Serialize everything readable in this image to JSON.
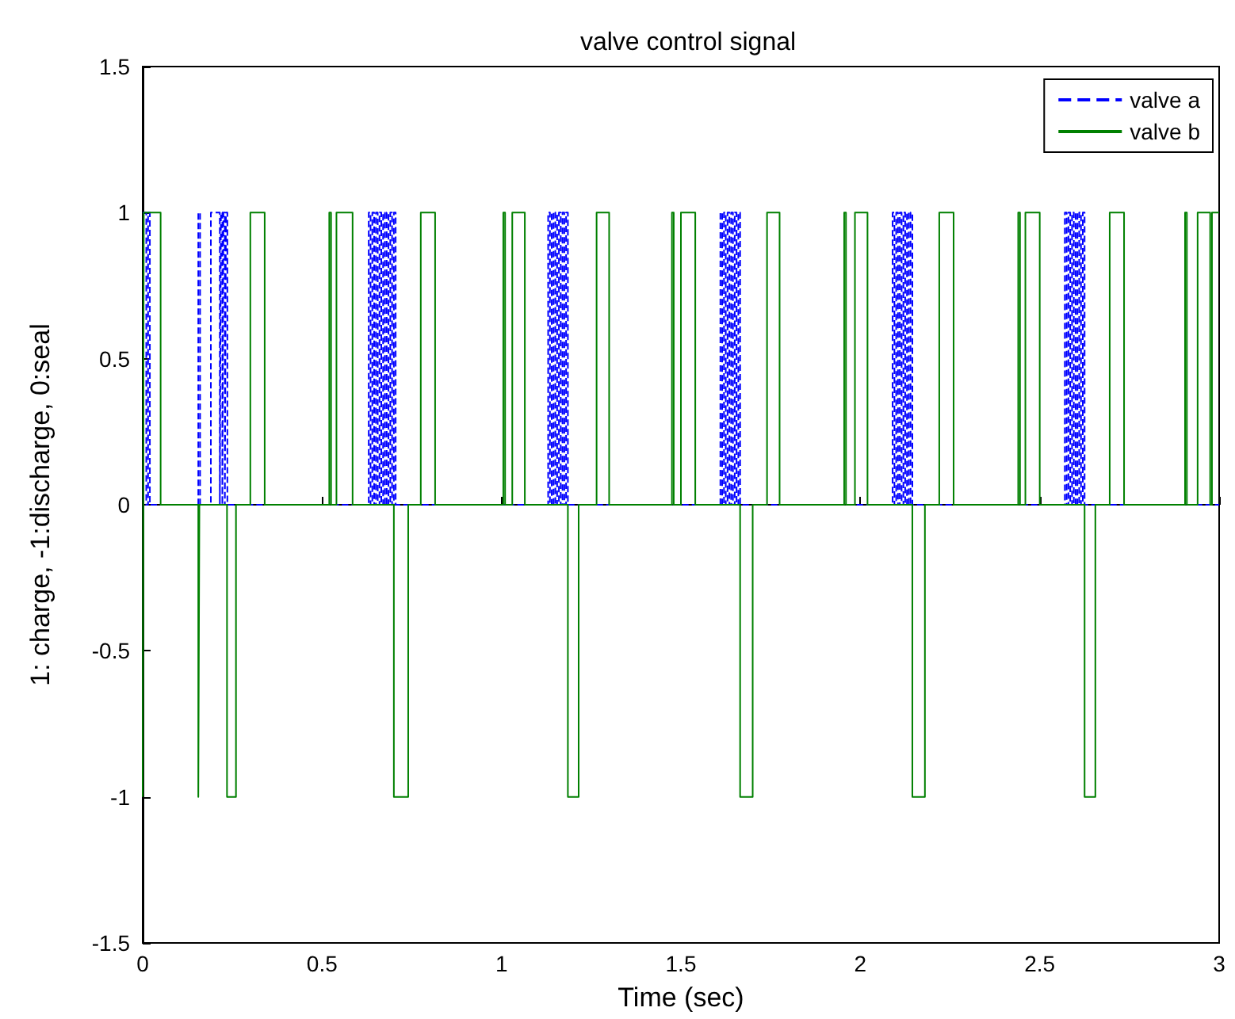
{
  "chart_data": {
    "type": "step",
    "title": "valve control signal",
    "xlabel": "Time (sec)",
    "ylabel": "1: charge, -1:discharge, 0:seal",
    "xlim": [
      0,
      3
    ],
    "ylim": [
      -1.5,
      1.5
    ],
    "xticks": [
      0,
      0.5,
      1,
      1.5,
      2,
      2.5,
      3
    ],
    "yticks": [
      -1.5,
      -1,
      -0.5,
      0,
      0.5,
      1,
      1.5
    ],
    "legend": "top right",
    "marker": "none",
    "series": [
      {
        "name": "valve a",
        "color": "#0000ff",
        "line_style": "dashed",
        "x": [
          0,
          0.01,
          0.015,
          0.02,
          0.155,
          0.16,
          0.19,
          0.215,
          0.218,
          0.222,
          0.225,
          0.229,
          0.232,
          0.236,
          0.63,
          0.635,
          0.64,
          0.645,
          0.65,
          0.655,
          0.66,
          0.665,
          0.67,
          0.675,
          0.68,
          0.685,
          0.69,
          0.695,
          0.7,
          0.705,
          1.13,
          1.135,
          1.14,
          1.145,
          1.15,
          1.155,
          1.16,
          1.165,
          1.17,
          1.175,
          1.18,
          1.185,
          1.61,
          1.615,
          1.62,
          1.625,
          1.63,
          1.635,
          1.64,
          1.645,
          1.65,
          1.655,
          1.66,
          1.665,
          2.09,
          2.095,
          2.1,
          2.105,
          2.11,
          2.115,
          2.12,
          2.125,
          2.13,
          2.135,
          2.14,
          2.145,
          2.57,
          2.575,
          2.58,
          2.585,
          2.59,
          2.595,
          2.6,
          2.605,
          2.61,
          2.615,
          2.62,
          2.625,
          3
        ],
        "values": [
          1,
          0,
          1,
          0,
          1,
          0,
          1,
          0,
          1,
          0,
          1,
          0,
          1,
          0,
          1,
          0,
          1,
          0,
          1,
          0,
          1,
          0,
          1,
          0,
          1,
          0,
          1,
          0,
          1,
          0,
          1,
          0,
          1,
          0,
          1,
          0,
          1,
          0,
          1,
          0,
          1,
          0,
          1,
          0,
          1,
          0,
          1,
          0,
          1,
          0,
          1,
          0,
          1,
          0,
          1,
          0,
          1,
          0,
          1,
          0,
          1,
          0,
          1,
          0,
          1,
          0,
          1,
          0,
          1,
          0,
          1,
          0,
          1,
          0,
          1,
          0,
          1,
          0,
          0
        ]
      },
      {
        "name": "valve b",
        "color": "#008000",
        "line_style": "solid",
        "x": [
          0,
          0.003,
          0.05,
          0.155,
          0.158,
          0.235,
          0.26,
          0.3,
          0.34,
          0.52,
          0.525,
          0.54,
          0.585,
          0.7,
          0.74,
          0.775,
          0.815,
          1.005,
          1.01,
          1.03,
          1.065,
          1.185,
          1.215,
          1.265,
          1.3,
          1.475,
          1.48,
          1.5,
          1.54,
          1.665,
          1.7,
          1.74,
          1.775,
          1.955,
          1.96,
          1.985,
          2.02,
          2.145,
          2.18,
          2.22,
          2.26,
          2.44,
          2.445,
          2.46,
          2.5,
          2.625,
          2.655,
          2.695,
          2.735,
          2.905,
          2.91,
          2.94,
          2.975,
          2.98,
          3
        ],
        "values": [
          -1,
          1,
          0,
          -1,
          0,
          -1,
          0,
          1,
          0,
          1,
          0,
          1,
          0,
          -1,
          0,
          1,
          0,
          1,
          0,
          1,
          0,
          -1,
          0,
          1,
          0,
          1,
          0,
          1,
          0,
          -1,
          0,
          1,
          0,
          1,
          0,
          1,
          0,
          -1,
          0,
          1,
          0,
          1,
          0,
          1,
          0,
          -1,
          0,
          1,
          0,
          1,
          0,
          1,
          0,
          1,
          1
        ]
      }
    ]
  }
}
